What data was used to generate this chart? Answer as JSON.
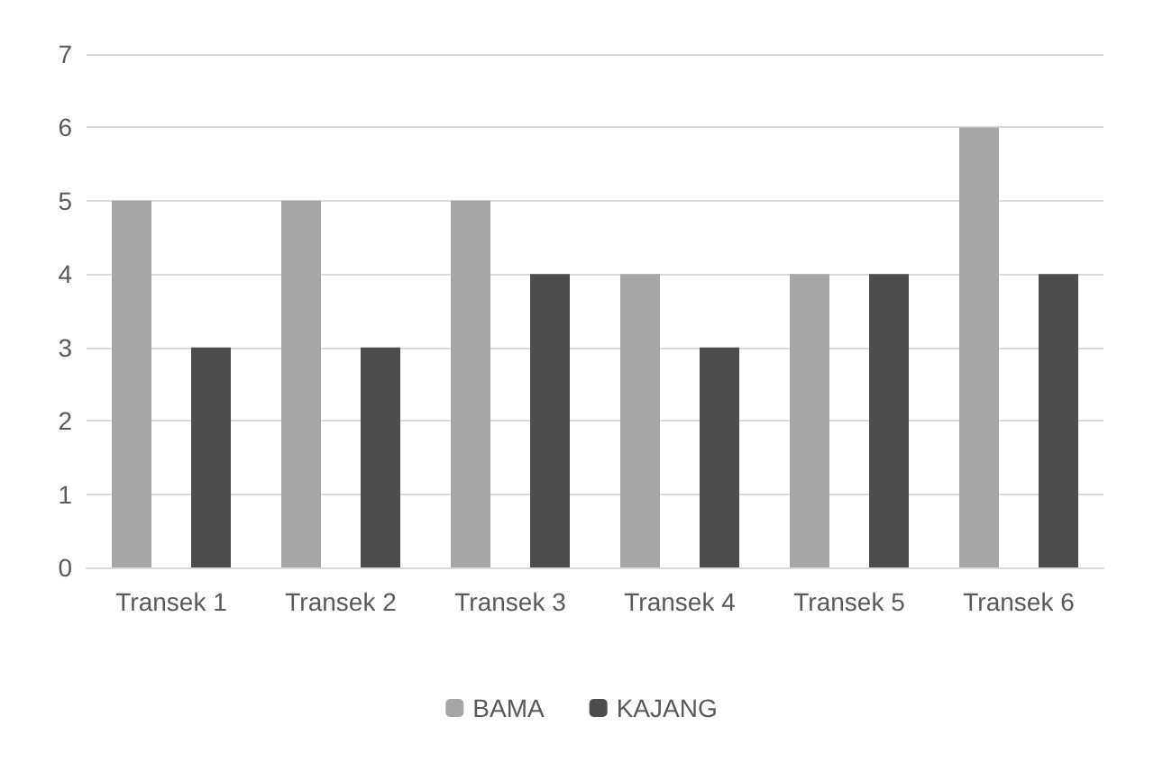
{
  "chart_data": {
    "type": "bar",
    "categories": [
      "Transek 1",
      "Transek 2",
      "Transek 3",
      "Transek 4",
      "Transek 5",
      "Transek 6"
    ],
    "series": [
      {
        "name": "BAMA",
        "color": "#a6a6a6",
        "values": [
          5,
          5,
          5,
          4,
          4,
          6
        ]
      },
      {
        "name": "KAJANG",
        "color": "#4d4d4d",
        "values": [
          3,
          3,
          4,
          3,
          4,
          4
        ]
      }
    ],
    "ylim": [
      0,
      7
    ],
    "yticks": [
      0,
      1,
      2,
      3,
      4,
      5,
      6,
      7
    ],
    "grid": "y",
    "legend": "bottom"
  }
}
